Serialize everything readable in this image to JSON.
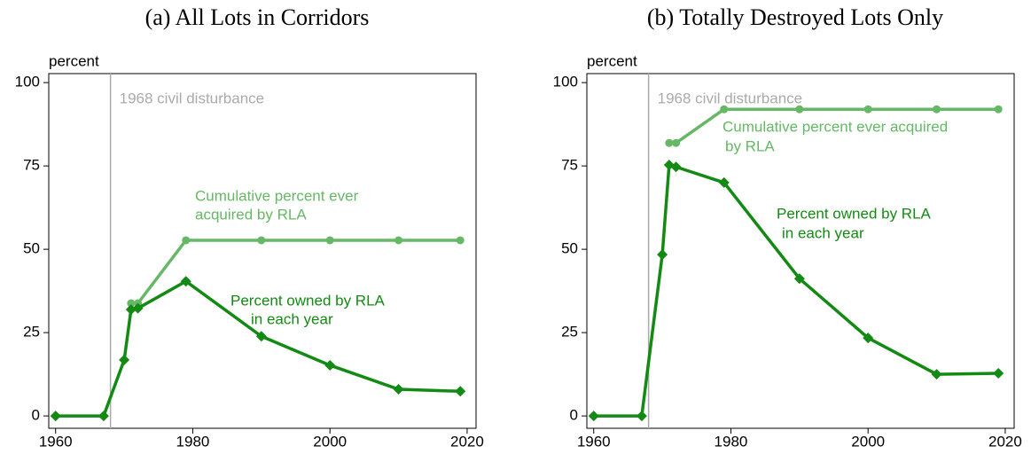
{
  "chart_data": [
    {
      "type": "line",
      "title": "(a) All Lots in Corridors",
      "ylabel": "percent",
      "xlim": [
        1959,
        2021.3
      ],
      "ylim": [
        -3.7,
        102.7
      ],
      "xticks": [
        1960,
        1980,
        2000,
        2020
      ],
      "yticks": [
        0,
        25,
        50,
        75,
        100
      ],
      "vline": {
        "x": 1968,
        "label": "1968 civil disturbance",
        "color": "#aaaaaa"
      },
      "series": [
        {
          "label": [
            "Cumulative percent ever",
            "acquired by RLA"
          ],
          "color": "#66b866",
          "marker": "circle",
          "x": [
            1971,
            1972,
            1979,
            1990,
            2000,
            2010,
            2019
          ],
          "values": [
            33.8,
            33.8,
            52.7,
            52.7,
            52.7,
            52.7,
            52.7
          ]
        },
        {
          "label": [
            "Percent owned by RLA",
            "in each year"
          ],
          "color": "#138a13",
          "marker": "diamond",
          "x": [
            1960,
            1967,
            1970,
            1971,
            1972,
            1979,
            1990,
            2000,
            2010,
            2019
          ],
          "values": [
            0,
            0,
            16.8,
            31.9,
            32.3,
            40.4,
            23.9,
            15.2,
            8.0,
            7.4
          ]
        }
      ]
    },
    {
      "type": "line",
      "title": "(b) Totally Destroyed Lots Only",
      "ylabel": "percent",
      "xlim": [
        1959,
        2021.3
      ],
      "ylim": [
        -3.7,
        102.7
      ],
      "xticks": [
        1960,
        1980,
        2000,
        2020
      ],
      "yticks": [
        0,
        25,
        50,
        75,
        100
      ],
      "vline": {
        "x": 1968,
        "label": "1968 civil disturbance",
        "color": "#aaaaaa"
      },
      "series": [
        {
          "label": [
            "Cumulative percent ever acquired",
            "by RLA"
          ],
          "color": "#66b866",
          "marker": "circle",
          "x": [
            1971,
            1972,
            1979,
            1990,
            2000,
            2010,
            2019
          ],
          "values": [
            81.9,
            81.9,
            92.0,
            92.0,
            92.0,
            92.0,
            92.0
          ]
        },
        {
          "label": [
            "Percent owned by RLA",
            "in each year"
          ],
          "color": "#138a13",
          "marker": "diamond",
          "x": [
            1960,
            1967,
            1970,
            1971,
            1972,
            1979,
            1990,
            2000,
            2010,
            2019
          ],
          "values": [
            0,
            0,
            48.4,
            75.3,
            74.7,
            70.0,
            41.2,
            23.4,
            12.5,
            12.8
          ]
        }
      ]
    }
  ]
}
